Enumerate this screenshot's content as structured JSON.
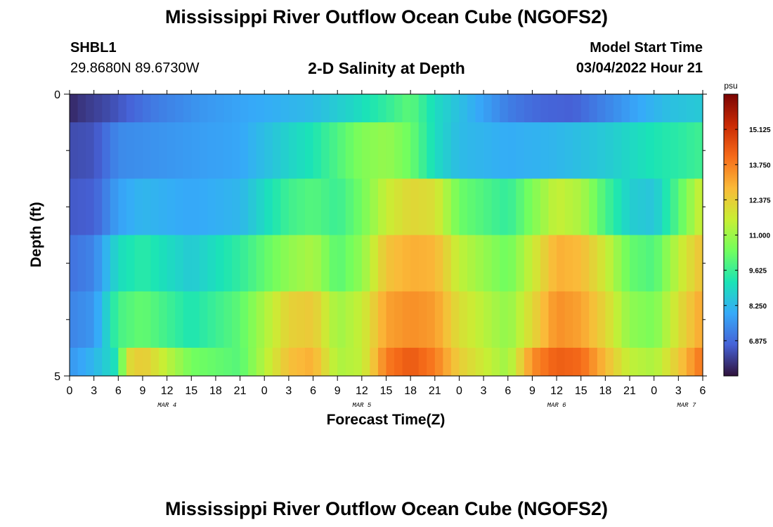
{
  "header": {
    "title": "Mississippi River Outflow Ocean Cube (NGOFS2)",
    "station_id": "SHBL1",
    "station_coords": "29.8680N  89.6730W",
    "subtitle": "2-D Salinity at Depth",
    "model_start_label": "Model Start Time",
    "model_start_value": "03/04/2022 Hour 21"
  },
  "footer": {
    "title": "Mississippi River Outflow Ocean Cube (NGOFS2)"
  },
  "chart_data": {
    "type": "heatmap",
    "xlabel": "Forecast Time(Z)",
    "ylabel": "Depth (ft)",
    "x_start_hour": 0,
    "x_end_hour": 78,
    "x_step_hours": 1,
    "x_ticks_hours": [
      0,
      3,
      6,
      9,
      12,
      15,
      18,
      21,
      24,
      27,
      30,
      33,
      36,
      39,
      42,
      45,
      48,
      51,
      54,
      57,
      60,
      63,
      66,
      69,
      72,
      75,
      78
    ],
    "x_tick_labels": [
      "0",
      "3",
      "6",
      "9",
      "12",
      "15",
      "18",
      "21",
      "0",
      "3",
      "6",
      "9",
      "12",
      "15",
      "18",
      "21",
      "0",
      "3",
      "6",
      "9",
      "12",
      "15",
      "18",
      "21",
      "0",
      "3",
      "6"
    ],
    "date_labels": [
      {
        "hour": 12,
        "text": "MAR 4"
      },
      {
        "hour": 36,
        "text": "MAR 5"
      },
      {
        "hour": 60,
        "text": "MAR 6"
      },
      {
        "hour": 76,
        "text": "MAR 7"
      }
    ],
    "y_range": [
      0,
      5
    ],
    "y_tick_labels": [
      {
        "value": 0,
        "text": "0"
      },
      {
        "value": 5,
        "text": "5"
      }
    ],
    "y_minor_ticks": [
      1,
      2,
      3,
      4
    ],
    "layer_bounds": [
      0,
      0.5,
      1.5,
      2.5,
      3.5,
      4.5,
      5
    ],
    "layer_profiles": [
      [
        [
          0,
          5.8
        ],
        [
          1,
          6.0
        ],
        [
          5,
          6.4
        ],
        [
          10,
          7.1
        ],
        [
          16,
          7.6
        ],
        [
          24,
          8.0
        ],
        [
          30,
          8.3
        ],
        [
          35,
          8.9
        ],
        [
          39,
          9.5
        ],
        [
          42,
          10.1
        ],
        [
          45,
          9.0
        ],
        [
          50,
          8.0
        ],
        [
          54,
          7.2
        ],
        [
          58,
          6.8
        ],
        [
          62,
          6.7
        ],
        [
          66,
          7.3
        ],
        [
          70,
          7.9
        ],
        [
          74,
          8.4
        ],
        [
          78,
          8.6
        ]
      ],
      [
        [
          0,
          6.4
        ],
        [
          3,
          6.5
        ],
        [
          6,
          7.4
        ],
        [
          9,
          7.5
        ],
        [
          15,
          7.7
        ],
        [
          21,
          7.9
        ],
        [
          27,
          8.8
        ],
        [
          30,
          9.2
        ],
        [
          33,
          9.9
        ],
        [
          36,
          10.6
        ],
        [
          39,
          10.9
        ],
        [
          42,
          10.3
        ],
        [
          45,
          9.0
        ],
        [
          48,
          8.3
        ],
        [
          54,
          8.0
        ],
        [
          60,
          8.2
        ],
        [
          66,
          8.6
        ],
        [
          72,
          9.2
        ],
        [
          75,
          9.4
        ],
        [
          78,
          9.7
        ]
      ],
      [
        [
          0,
          6.6
        ],
        [
          3,
          6.7
        ],
        [
          6,
          7.8
        ],
        [
          9,
          8.2
        ],
        [
          15,
          7.9
        ],
        [
          21,
          8.2
        ],
        [
          27,
          9.7
        ],
        [
          30,
          10.0
        ],
        [
          33,
          9.6
        ],
        [
          36,
          10.4
        ],
        [
          39,
          11.6
        ],
        [
          42,
          12.2
        ],
        [
          45,
          12.0
        ],
        [
          48,
          10.3
        ],
        [
          54,
          9.5
        ],
        [
          60,
          11.6
        ],
        [
          63,
          11.2
        ],
        [
          66,
          9.8
        ],
        [
          69,
          8.7
        ],
        [
          72,
          8.5
        ],
        [
          75,
          10.0
        ],
        [
          78,
          11.8
        ]
      ],
      [
        [
          0,
          7.0
        ],
        [
          3,
          7.3
        ],
        [
          6,
          9.0
        ],
        [
          9,
          9.4
        ],
        [
          15,
          8.6
        ],
        [
          21,
          9.5
        ],
        [
          27,
          10.8
        ],
        [
          30,
          11.2
        ],
        [
          33,
          10.0
        ],
        [
          36,
          10.8
        ],
        [
          39,
          12.6
        ],
        [
          42,
          13.0
        ],
        [
          45,
          12.9
        ],
        [
          48,
          11.5
        ],
        [
          54,
          10.3
        ],
        [
          60,
          13.0
        ],
        [
          63,
          12.8
        ],
        [
          66,
          11.7
        ],
        [
          69,
          10.2
        ],
        [
          72,
          9.9
        ],
        [
          75,
          11.5
        ],
        [
          78,
          12.7
        ]
      ],
      [
        [
          0,
          7.3
        ],
        [
          3,
          7.6
        ],
        [
          6,
          9.8
        ],
        [
          9,
          10.2
        ],
        [
          15,
          9.2
        ],
        [
          21,
          10.1
        ],
        [
          27,
          12.3
        ],
        [
          30,
          12.5
        ],
        [
          33,
          11.0
        ],
        [
          36,
          11.6
        ],
        [
          39,
          13.2
        ],
        [
          42,
          13.5
        ],
        [
          45,
          13.3
        ],
        [
          48,
          12.0
        ],
        [
          54,
          10.8
        ],
        [
          60,
          13.5
        ],
        [
          63,
          13.2
        ],
        [
          66,
          12.2
        ],
        [
          69,
          10.8
        ],
        [
          72,
          10.5
        ],
        [
          75,
          12.0
        ],
        [
          78,
          13.2
        ]
      ],
      [
        [
          0,
          7.6
        ],
        [
          3,
          8.2
        ],
        [
          6,
          9.2
        ],
        [
          7,
          12.0
        ],
        [
          9,
          12.5
        ],
        [
          15,
          10.4
        ],
        [
          21,
          10.0
        ],
        [
          27,
          12.7
        ],
        [
          30,
          13.0
        ],
        [
          33,
          11.2
        ],
        [
          36,
          11.5
        ],
        [
          39,
          13.8
        ],
        [
          42,
          14.4
        ],
        [
          45,
          13.8
        ],
        [
          48,
          12.4
        ],
        [
          54,
          11.0
        ],
        [
          57,
          13.5
        ],
        [
          60,
          14.3
        ],
        [
          63,
          14.1
        ],
        [
          66,
          12.8
        ],
        [
          69,
          11.5
        ],
        [
          72,
          11.2
        ],
        [
          75,
          12.5
        ],
        [
          78,
          14.0
        ]
      ]
    ],
    "colorbar": {
      "unit": "psu",
      "min": 5.5,
      "max": 16.5,
      "tick_values": [
        6.875,
        8.25,
        9.625,
        11.0,
        12.375,
        13.75,
        15.125
      ],
      "tick_labels": [
        "6.875",
        "8.250",
        "9.625",
        "11.000",
        "12.375",
        "13.750",
        "15.125"
      ],
      "colormap": [
        "#30123b",
        "#4662d7",
        "#36aaf9",
        "#1ae4b6",
        "#72fe5e",
        "#c8ef34",
        "#faba39",
        "#f66b19",
        "#ca2a04",
        "#7a0403"
      ]
    }
  }
}
